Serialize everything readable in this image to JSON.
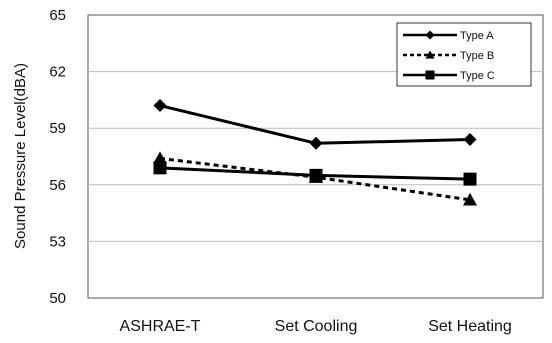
{
  "chart_data": {
    "type": "line",
    "title": "",
    "xlabel": "",
    "ylabel": "Sound Pressure Level(dBA)",
    "categories": [
      "ASHRAE-T",
      "Set Cooling",
      "Set Heating"
    ],
    "ylim": [
      50,
      65
    ],
    "yticks": [
      50,
      53,
      56,
      59,
      62,
      65
    ],
    "grid": true,
    "legend_position": "top-right",
    "series": [
      {
        "name": "Type A",
        "values": [
          60.2,
          58.2,
          58.4
        ],
        "marker": "diamond",
        "line_style": "solid",
        "color": "#000000"
      },
      {
        "name": "Type B",
        "values": [
          57.4,
          56.4,
          55.2
        ],
        "marker": "triangle",
        "line_style": "dashed",
        "color": "#000000"
      },
      {
        "name": "Type C",
        "values": [
          56.9,
          56.5,
          56.3
        ],
        "marker": "square",
        "line_style": "solid",
        "color": "#000000"
      }
    ]
  }
}
